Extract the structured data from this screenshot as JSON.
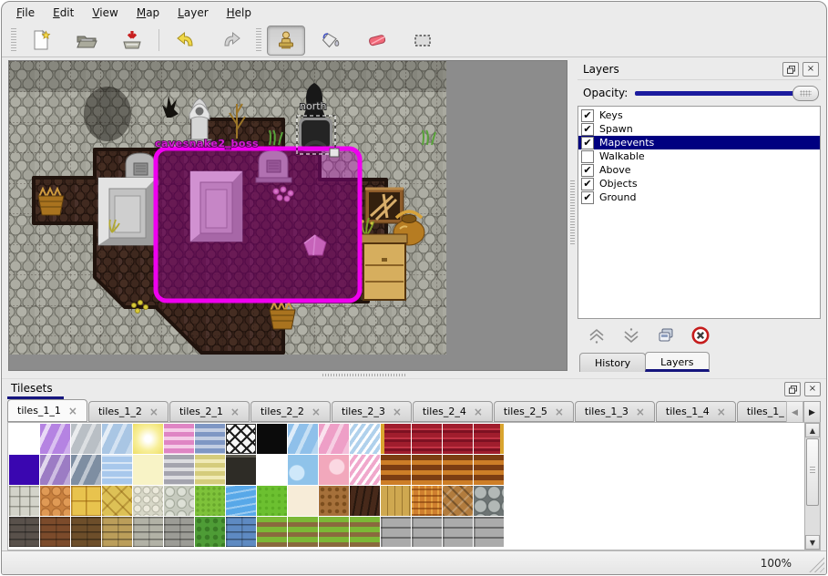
{
  "menubar": {
    "items": [
      "File",
      "Edit",
      "View",
      "Map",
      "Layer",
      "Help"
    ]
  },
  "toolbar": {
    "groups": [
      {
        "buttons": [
          {
            "name": "new-file",
            "icon": "new"
          },
          {
            "name": "open-file",
            "icon": "open"
          },
          {
            "name": "save-file",
            "icon": "save"
          }
        ]
      },
      {
        "buttons": [
          {
            "name": "undo",
            "icon": "undo"
          },
          {
            "name": "redo",
            "icon": "redo"
          }
        ]
      },
      {
        "buttons": [
          {
            "name": "stamp-tool",
            "icon": "stamp",
            "active": true
          },
          {
            "name": "fill-tool",
            "icon": "fill"
          },
          {
            "name": "eraser-tool",
            "icon": "eraser"
          },
          {
            "name": "select-tool",
            "icon": "select"
          }
        ]
      }
    ]
  },
  "map": {
    "labels": {
      "portal": "north",
      "event": "cavesnake2_boss"
    },
    "selection_color": "#ff00ff"
  },
  "layers_panel": {
    "title": "Layers",
    "opacity_label": "Opacity:",
    "opacity_value": 1.0,
    "layers": [
      {
        "label": "Keys",
        "checked": true,
        "selected": false
      },
      {
        "label": "Spawn",
        "checked": true,
        "selected": false
      },
      {
        "label": "Mapevents",
        "checked": true,
        "selected": true
      },
      {
        "label": "Walkable",
        "checked": false,
        "selected": false
      },
      {
        "label": "Above",
        "checked": true,
        "selected": false
      },
      {
        "label": "Objects",
        "checked": true,
        "selected": false
      },
      {
        "label": "Ground",
        "checked": true,
        "selected": false
      }
    ],
    "action_buttons": [
      "raise-layer",
      "lower-layer",
      "duplicate-layer",
      "delete-layer"
    ],
    "tabs": [
      {
        "label": "History",
        "active": false
      },
      {
        "label": "Layers",
        "active": true
      }
    ]
  },
  "tilesets_panel": {
    "title": "Tilesets",
    "tabs": [
      {
        "label": "tiles_1_1",
        "active": true
      },
      {
        "label": "tiles_1_2",
        "active": false
      },
      {
        "label": "tiles_2_1",
        "active": false
      },
      {
        "label": "tiles_2_2",
        "active": false
      },
      {
        "label": "tiles_2_3",
        "active": false
      },
      {
        "label": "tiles_2_4",
        "active": false
      },
      {
        "label": "tiles_2_5",
        "active": false
      },
      {
        "label": "tiles_1_3",
        "active": false
      },
      {
        "label": "tiles_1_4",
        "active": false
      },
      {
        "label": "tiles_1_",
        "active": false
      }
    ],
    "palette_rows": [
      [
        "white",
        "glass-purple",
        "glass-grey",
        "glass-blue",
        "glow-yellow",
        "stripes-pink",
        "stripes-blue",
        "lattice",
        "black",
        "glass-blue2",
        "glass-pink",
        "zigzag-blue",
        "carpet-red-l",
        "carpet-red",
        "carpet-red",
        "carpet-red-r"
      ],
      [
        "indigo",
        "glass-purple2",
        "glass-grey2",
        "water-light",
        "pale-yellow",
        "stripes-grey",
        "stripes-olive",
        "sign-dark",
        "white",
        "blue-patch",
        "pink-patch",
        "zigzag-pink",
        "stripes-brown",
        "stripes-brown",
        "stripes-brown",
        "stripes-brown"
      ],
      [
        "stone-blocks",
        "cobble-orange",
        "tiles-yellow",
        "stone-yellow",
        "pebbles",
        "cobble-grey",
        "grass",
        "water",
        "green-bright",
        "sand-pale",
        "dirt-dots",
        "wood-dark",
        "planks-v",
        "basket",
        "herringbone",
        "stones-round"
      ],
      [
        "brick-dark",
        "brick-brown",
        "brick-tan",
        "wall-tan",
        "wall-grey",
        "brick-grey",
        "hedge",
        "brick-blue",
        "grass-rows",
        "grass-rows",
        "grass-rows",
        "grass-rows",
        "slab-grey",
        "slab-grey",
        "slab-grey",
        "slab-grey"
      ]
    ]
  },
  "statusbar": {
    "zoom": "100%"
  },
  "colors": {
    "accent": "#000080",
    "selection": "#ff00ff",
    "slider": "#1b1b9e"
  }
}
